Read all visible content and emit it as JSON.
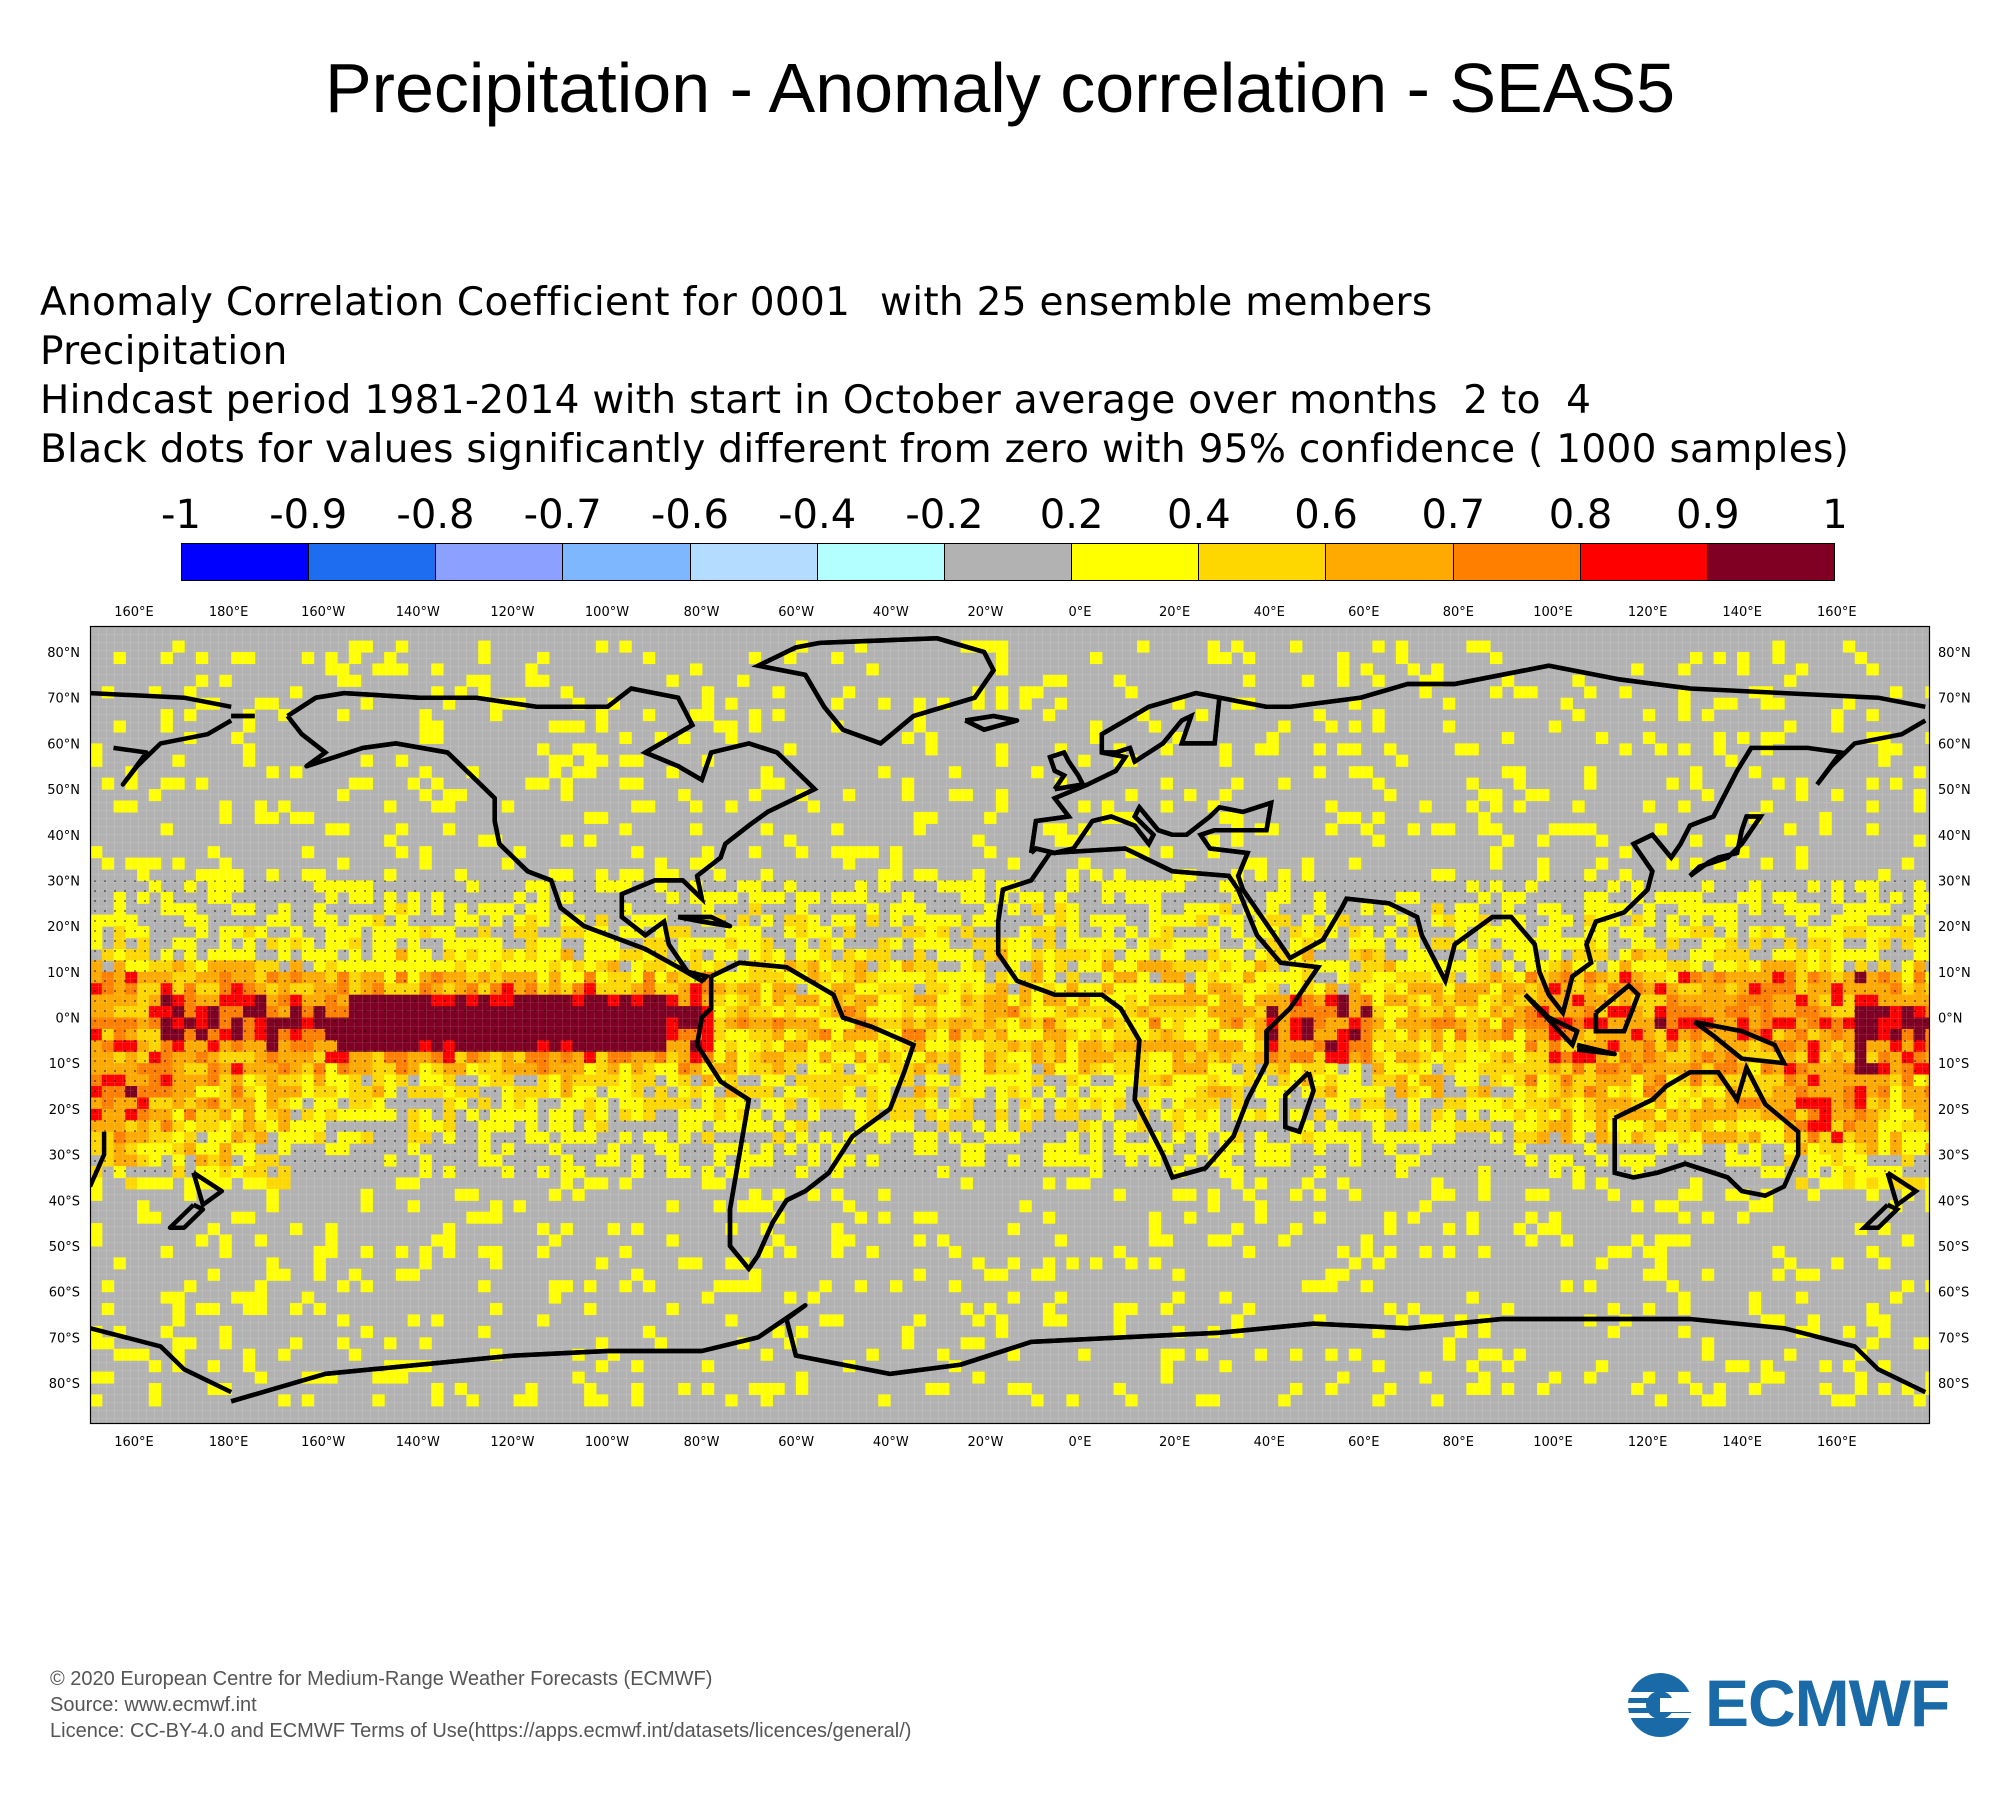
{
  "title": "Precipitation - Anomaly correlation - SEAS5",
  "info": {
    "line1a": "Anomaly Correlation Coefficient for 0001",
    "line1b": "with 25 ensemble members",
    "line2": "Precipitation",
    "line3": "Hindcast period 1981-2014 with start in October average over months  2 to  4",
    "line4": "Black dots for values significantly different from zero with 95% confidence ( 1000 samples)"
  },
  "colorbar": {
    "labels": [
      "-1",
      "-0.9",
      "-0.8",
      "-0.7",
      "-0.6",
      "-0.4",
      "-0.2",
      "0.2",
      "0.4",
      "0.6",
      "0.7",
      "0.8",
      "0.9",
      "1"
    ],
    "colors": [
      "#0000ff",
      "#1e6cf0",
      "#8ca0ff",
      "#7fb7ff",
      "#b3dcff",
      "#b3ffff",
      "#b2b2b2",
      "#ffff00",
      "#ffd700",
      "#ffaa00",
      "#ff7f00",
      "#ff0000",
      "#7f0022"
    ]
  },
  "map": {
    "lon_labels": [
      "160°E",
      "180°E",
      "160°W",
      "140°W",
      "120°W",
      "100°W",
      "80°W",
      "60°W",
      "40°W",
      "20°W",
      "0°E",
      "20°E",
      "40°E",
      "60°E",
      "80°E",
      "100°E",
      "120°E",
      "140°E",
      "160°E"
    ],
    "lat_labels": [
      "80°N",
      "70°N",
      "60°N",
      "50°N",
      "40°N",
      "30°N",
      "20°N",
      "10°N",
      "0°N",
      "10°S",
      "20°S",
      "30°S",
      "40°S",
      "50°S",
      "60°S",
      "70°S",
      "80°S"
    ]
  },
  "footer": {
    "line1": "© 2020 European Centre for Medium-Range Weather Forecasts (ECMWF)",
    "line2": "Source: www.ecmwf.int",
    "line3": "Licence: CC-BY-4.0 and ECMWF Terms of Use(https://apps.ecmwf.int/datasets/licences/general/)"
  },
  "logo": {
    "text": "ECMWF",
    "color": "#1a6aa8"
  }
}
